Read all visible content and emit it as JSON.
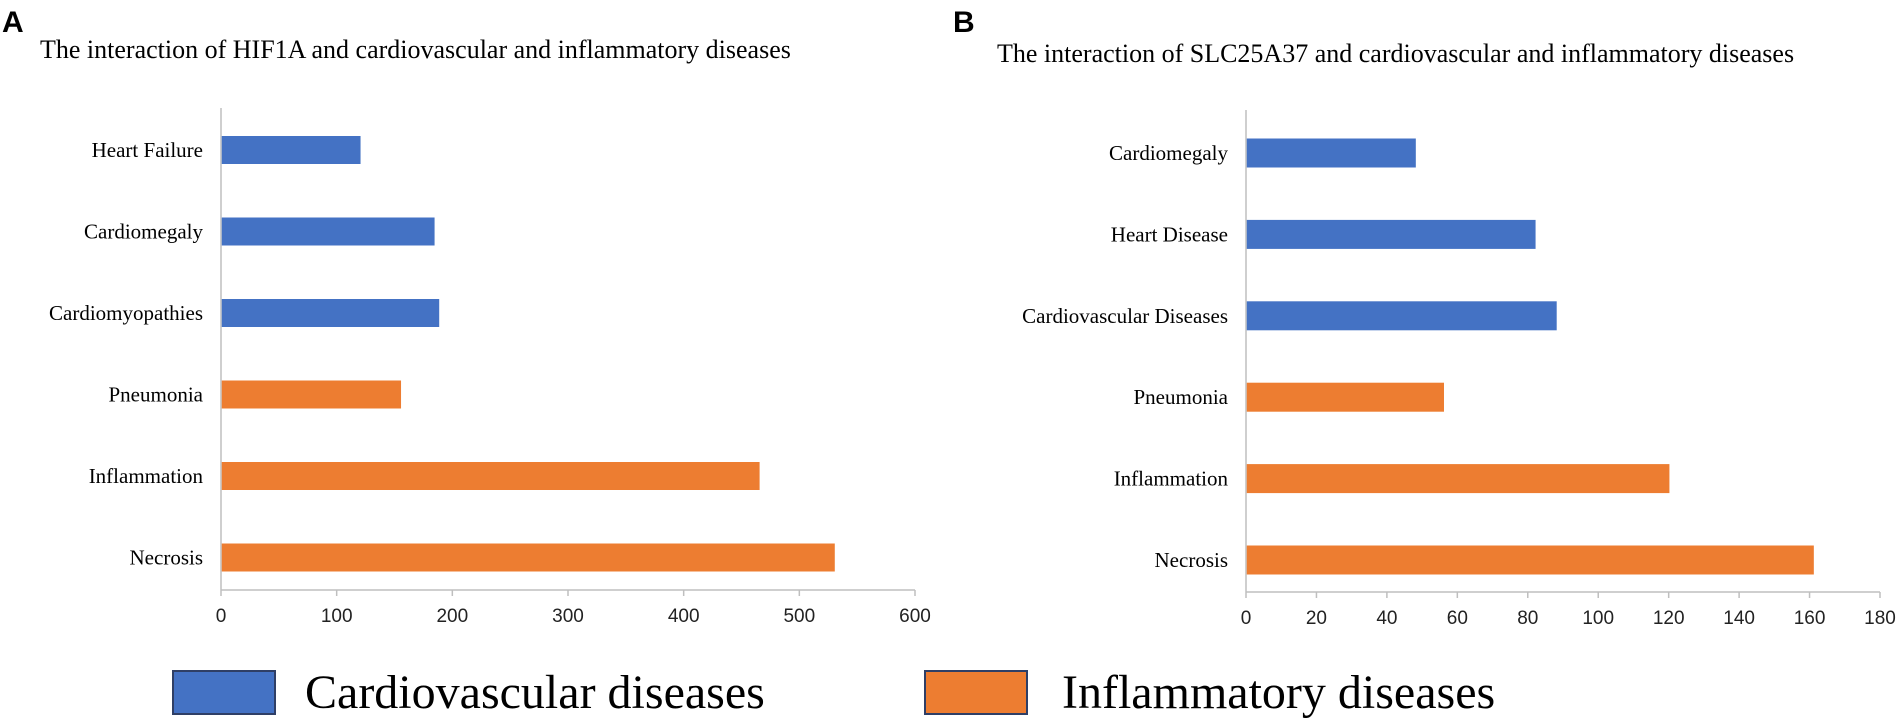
{
  "colors": {
    "cardiovascular": "#4472C4",
    "inflammatory": "#ED7D31",
    "axis": "#BFBFBF",
    "legend_border": "#2F3F66"
  },
  "chart_data": [
    {
      "type": "bar",
      "orientation": "horizontal",
      "panel": "A",
      "title": "The interaction of HIF1A and cardiovascular and inflammatory diseases",
      "categories": [
        "Heart Failure",
        "Cardiomegaly",
        "Cardiomyopathies",
        "Pneumonia",
        "Inflammation",
        "Necrosis"
      ],
      "values": [
        120,
        184,
        188,
        155,
        465,
        530
      ],
      "groups": [
        "cardiovascular",
        "cardiovascular",
        "cardiovascular",
        "inflammatory",
        "inflammatory",
        "inflammatory"
      ],
      "xlim": [
        0,
        600
      ],
      "xticks": [
        0,
        100,
        200,
        300,
        400,
        500,
        600
      ],
      "xlabel": "",
      "ylabel": "",
      "grid": false
    },
    {
      "type": "bar",
      "orientation": "horizontal",
      "panel": "B",
      "title": "The interaction of SLC25A37 and cardiovascular and inflammatory diseases",
      "categories": [
        "Cardiomegaly",
        "Heart Disease",
        "Cardiovascular Diseases",
        "Pneumonia",
        "Inflammation",
        "Necrosis"
      ],
      "values": [
        48,
        82,
        88,
        56,
        120,
        161
      ],
      "groups": [
        "cardiovascular",
        "cardiovascular",
        "cardiovascular",
        "inflammatory",
        "inflammatory",
        "inflammatory"
      ],
      "xlim": [
        0,
        180
      ],
      "xticks": [
        0,
        20,
        40,
        60,
        80,
        100,
        120,
        140,
        160,
        180
      ],
      "xlabel": "",
      "ylabel": "",
      "grid": false
    }
  ],
  "legend": {
    "placement": "bottom",
    "items": [
      {
        "key": "cardiovascular",
        "label": "Cardiovascular diseases"
      },
      {
        "key": "inflammatory",
        "label": "Inflammatory diseases"
      }
    ]
  }
}
